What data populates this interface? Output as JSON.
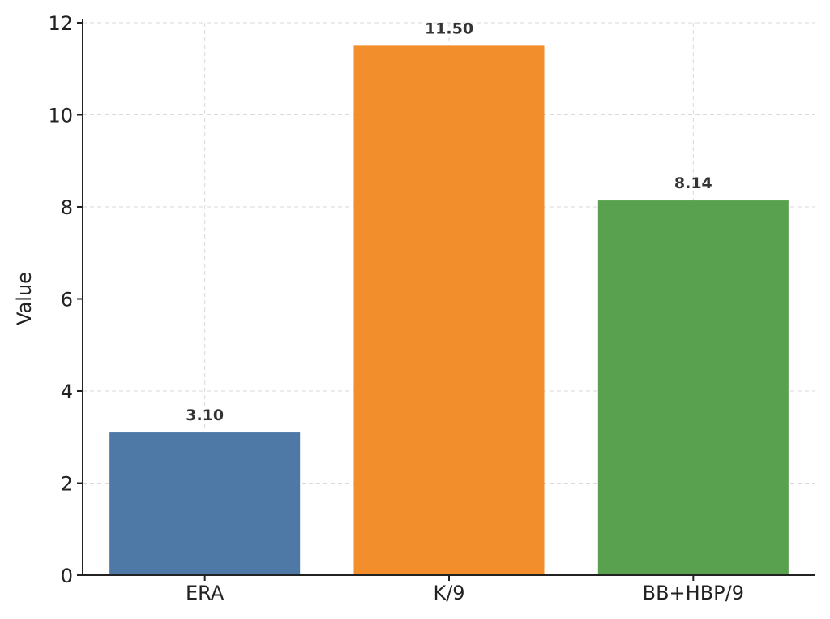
{
  "chart_data": {
    "type": "bar",
    "title": "",
    "xlabel": "",
    "ylabel": "Value",
    "categories": [
      "ERA",
      "K/9",
      "BB+HBP/9"
    ],
    "values": [
      3.1,
      11.5,
      8.14
    ],
    "data_labels": [
      "3.10",
      "11.50",
      "8.14"
    ],
    "colors": [
      "#4e79a7",
      "#f28e2b",
      "#59a14f"
    ],
    "ylim": [
      0,
      12
    ],
    "yticks": [
      0,
      2,
      4,
      6,
      8,
      10,
      12
    ],
    "ytick_labels": [
      "0",
      "2",
      "4",
      "6",
      "8",
      "10",
      "12"
    ],
    "grid": true,
    "legend": "none"
  }
}
